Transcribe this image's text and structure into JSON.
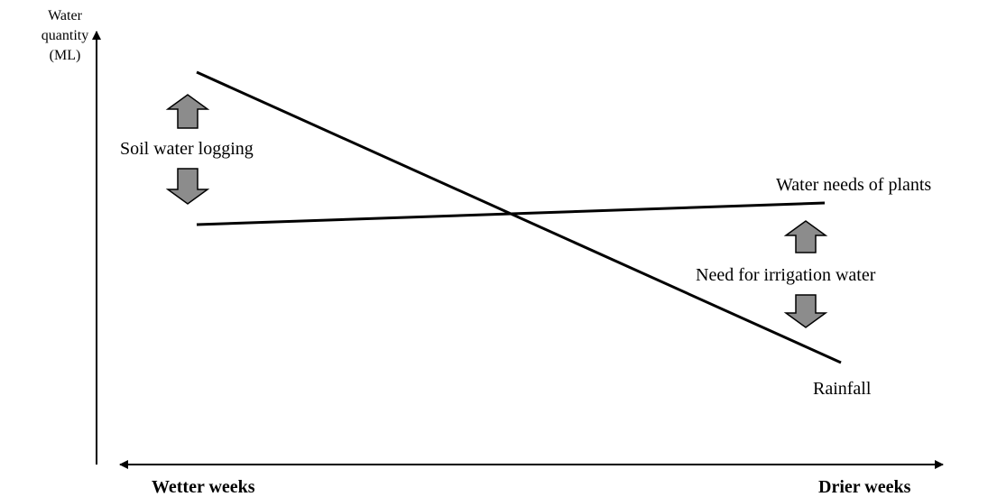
{
  "axes": {
    "y_label": [
      "Water",
      "quantity",
      "(ML)"
    ],
    "x_left": "Wetter weeks",
    "x_right": "Drier weeks"
  },
  "lines": [
    {
      "label": "Rainfall"
    },
    {
      "label": "Water needs of plants"
    }
  ],
  "regions": [
    {
      "label": "Soil water logging"
    },
    {
      "label": "Need for irrigation water"
    }
  ]
}
